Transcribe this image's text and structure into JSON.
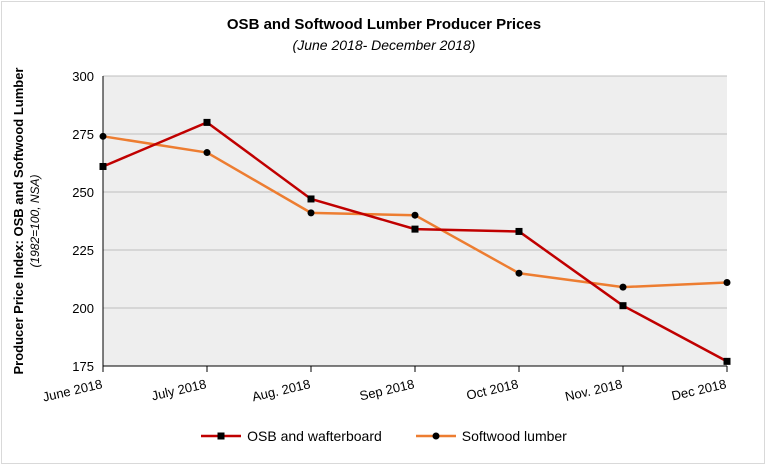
{
  "chart_data": {
    "type": "line",
    "title": "OSB and Softwood Lumber Producer Prices",
    "subtitle": "(June 2018- December 2018)",
    "ylabel": "Producer Price Index: OSB and Softwood Lumber",
    "ylabel_sub": "(1982=100, NSA)",
    "xlabel": "",
    "categories": [
      "June 2018",
      "July 2018",
      "Aug. 2018",
      "Sep 2018",
      "Oct 2018",
      "Nov. 2018",
      "Dec 2018"
    ],
    "ylim": [
      175,
      300
    ],
    "yticks": [
      175,
      200,
      225,
      250,
      275,
      300
    ],
    "grid": true,
    "legend_position": "bottom",
    "series": [
      {
        "name": "OSB and wafterboard",
        "color": "#c00000",
        "marker": "square",
        "values": [
          261,
          280,
          247,
          234,
          233,
          201,
          177
        ]
      },
      {
        "name": "Softwood lumber",
        "color": "#ed7d31",
        "marker": "circle",
        "values": [
          274,
          267,
          241,
          240,
          215,
          209,
          211
        ]
      }
    ],
    "colors": {
      "plot_background": "#eeeeee",
      "gridline": "#bfbfbf",
      "marker": "#000000"
    }
  }
}
